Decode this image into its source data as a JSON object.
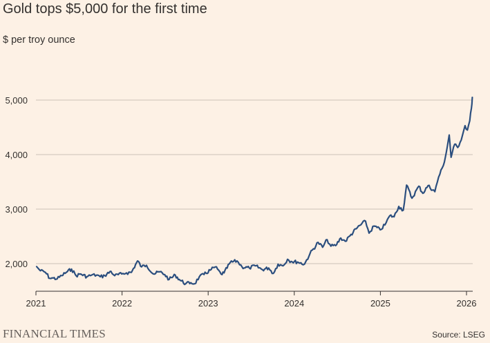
{
  "header": {
    "title": "Gold tops $5,000 for the first time",
    "subtitle": "$ per troy ounce"
  },
  "footer": {
    "brand": "FINANCIAL TIMES",
    "source": "Source: LSEG"
  },
  "colors": {
    "background": "#fdf1e5",
    "line": "#2b4e7e",
    "grid": "#ccc1b7",
    "axis": "#33302e"
  },
  "chart_data": {
    "type": "line",
    "title": "Gold tops $5,000 for the first time",
    "ylabel": "$ per troy ounce",
    "xlabel": "",
    "x_ticks": [
      "2021",
      "2022",
      "2023",
      "2024",
      "2025",
      "2026"
    ],
    "y_ticks": [
      2000,
      3000,
      4000,
      5000
    ],
    "y_tick_labels": [
      "2,000",
      "3,000",
      "4,000",
      "5,000"
    ],
    "ylim": [
      1500,
      5300
    ],
    "xlim": [
      "2021-01-01",
      "2026-01-27"
    ],
    "grid": "horizontal",
    "series": [
      {
        "name": "",
        "points": [
          [
            "2021-01-04",
            1945
          ],
          [
            "2021-01-20",
            1870
          ],
          [
            "2021-02-10",
            1840
          ],
          [
            "2021-03-01",
            1730
          ],
          [
            "2021-03-15",
            1735
          ],
          [
            "2021-04-01",
            1720
          ],
          [
            "2021-04-20",
            1780
          ],
          [
            "2021-05-10",
            1840
          ],
          [
            "2021-06-01",
            1900
          ],
          [
            "2021-06-20",
            1780
          ],
          [
            "2021-07-10",
            1810
          ],
          [
            "2021-08-05",
            1760
          ],
          [
            "2021-08-25",
            1790
          ],
          [
            "2021-09-15",
            1790
          ],
          [
            "2021-10-01",
            1760
          ],
          [
            "2021-10-20",
            1780
          ],
          [
            "2021-11-15",
            1860
          ],
          [
            "2021-12-01",
            1780
          ],
          [
            "2021-12-31",
            1810
          ],
          [
            "2022-01-20",
            1830
          ],
          [
            "2022-02-10",
            1840
          ],
          [
            "2022-03-08",
            2050
          ],
          [
            "2022-03-25",
            1940
          ],
          [
            "2022-04-15",
            1970
          ],
          [
            "2022-05-15",
            1810
          ],
          [
            "2022-06-10",
            1850
          ],
          [
            "2022-07-01",
            1800
          ],
          [
            "2022-07-20",
            1710
          ],
          [
            "2022-08-15",
            1790
          ],
          [
            "2022-09-01",
            1710
          ],
          [
            "2022-09-28",
            1630
          ],
          [
            "2022-10-20",
            1650
          ],
          [
            "2022-11-05",
            1630
          ],
          [
            "2022-11-25",
            1760
          ],
          [
            "2022-12-15",
            1800
          ],
          [
            "2023-01-10",
            1880
          ],
          [
            "2023-02-01",
            1940
          ],
          [
            "2023-02-25",
            1810
          ],
          [
            "2023-03-10",
            1830
          ],
          [
            "2023-04-05",
            2020
          ],
          [
            "2023-05-04",
            2050
          ],
          [
            "2023-05-25",
            1940
          ],
          [
            "2023-06-25",
            1920
          ],
          [
            "2023-07-20",
            1960
          ],
          [
            "2023-08-20",
            1890
          ],
          [
            "2023-09-15",
            1920
          ],
          [
            "2023-10-05",
            1820
          ],
          [
            "2023-10-25",
            1990
          ],
          [
            "2023-11-15",
            1960
          ],
          [
            "2023-12-04",
            2080
          ],
          [
            "2023-12-20",
            2040
          ],
          [
            "2024-01-15",
            2030
          ],
          [
            "2024-02-14",
            1990
          ],
          [
            "2024-03-08",
            2180
          ],
          [
            "2024-04-12",
            2390
          ],
          [
            "2024-05-01",
            2300
          ],
          [
            "2024-05-20",
            2440
          ],
          [
            "2024-06-05",
            2320
          ],
          [
            "2024-06-25",
            2330
          ],
          [
            "2024-07-17",
            2470
          ],
          [
            "2024-08-05",
            2410
          ],
          [
            "2024-08-25",
            2510
          ],
          [
            "2024-09-25",
            2660
          ],
          [
            "2024-10-30",
            2780
          ],
          [
            "2024-11-14",
            2560
          ],
          [
            "2024-12-05",
            2690
          ],
          [
            "2024-12-31",
            2620
          ],
          [
            "2025-01-20",
            2710
          ],
          [
            "2025-02-10",
            2880
          ],
          [
            "2025-02-28",
            2860
          ],
          [
            "2025-03-20",
            3050
          ],
          [
            "2025-04-08",
            2980
          ],
          [
            "2025-04-22",
            3440
          ],
          [
            "2025-05-15",
            3200
          ],
          [
            "2025-06-13",
            3420
          ],
          [
            "2025-06-30",
            3290
          ],
          [
            "2025-07-22",
            3430
          ],
          [
            "2025-08-20",
            3320
          ],
          [
            "2025-09-05",
            3590
          ],
          [
            "2025-09-25",
            3800
          ],
          [
            "2025-10-08",
            4050
          ],
          [
            "2025-10-20",
            4360
          ],
          [
            "2025-10-28",
            3950
          ],
          [
            "2025-11-12",
            4190
          ],
          [
            "2025-11-25",
            4130
          ],
          [
            "2025-12-15",
            4350
          ],
          [
            "2025-12-26",
            4530
          ],
          [
            "2026-01-05",
            4450
          ],
          [
            "2026-01-15",
            4620
          ],
          [
            "2026-01-22",
            4850
          ],
          [
            "2026-01-26",
            5050
          ]
        ]
      }
    ]
  }
}
